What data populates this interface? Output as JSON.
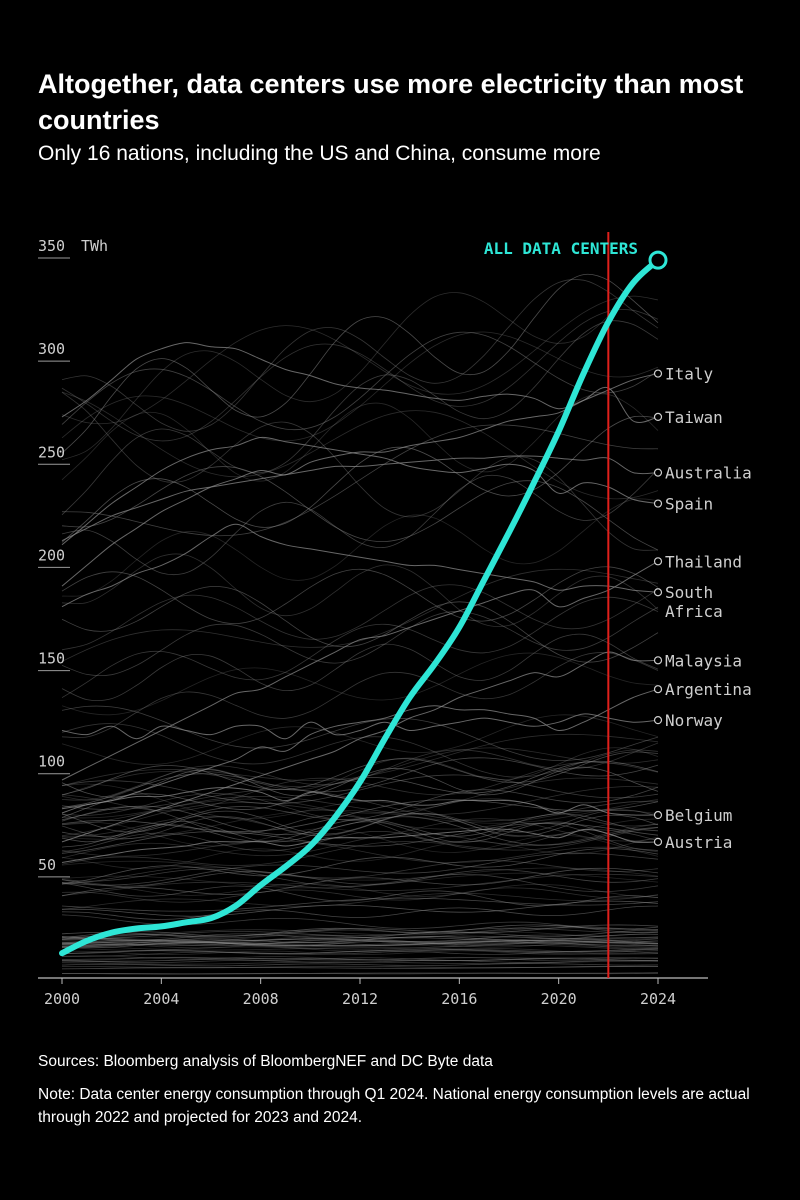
{
  "title": "Altogether, data centers use more electricity than most countries",
  "subtitle": "Only 16 nations, including the US and China, consume more",
  "sources": "Sources: Bloomberg analysis of BloombergNEF and DC Byte data",
  "note": "Note: Data center energy consumption through Q1 2024. National energy consumption levels are actual through 2022 and projected for 2023 and 2024.",
  "colors": {
    "background": "#000000",
    "highlight": "#2ee6d6",
    "marker": "#e0201b",
    "country_lines": "#8a8a8a",
    "text": "#ffffff",
    "axis_text": "#cfcfcf"
  },
  "chart_data": {
    "type": "line",
    "ylim": [
      0,
      350
    ],
    "xlim": [
      2000,
      2024
    ],
    "y_ticks": [
      350,
      300,
      250,
      200,
      150,
      100,
      50
    ],
    "y_tick_labels": [
      "350",
      "300",
      "250",
      "200",
      "150",
      "100",
      "50"
    ],
    "y_unit": "TWh",
    "x_ticks": [
      2000,
      2004,
      2008,
      2012,
      2016,
      2020,
      2024
    ],
    "x_tick_labels": [
      "2000",
      "2004",
      "2008",
      "2012",
      "2016",
      "2020",
      "2024"
    ],
    "marker_year": 2022,
    "grid": false,
    "highlight_series": {
      "name": "ALL DATA CENTERS",
      "x": [
        2000,
        2001,
        2002,
        2003,
        2004,
        2005,
        2006,
        2007,
        2008,
        2009,
        2010,
        2011,
        2012,
        2013,
        2014,
        2015,
        2016,
        2017,
        2018,
        2019,
        2020,
        2021,
        2022,
        2023,
        2024
      ],
      "values": [
        12,
        18,
        22,
        24,
        25,
        27,
        29,
        35,
        45,
        54,
        64,
        78,
        95,
        116,
        136,
        152,
        170,
        193,
        216,
        240,
        265,
        293,
        318,
        337,
        348
      ]
    },
    "labeled_countries": [
      {
        "name": "Italy",
        "values": [
          272,
          280,
          290,
          300,
          305,
          308,
          306,
          305,
          300,
          295,
          292,
          288,
          286,
          285,
          283,
          281,
          280,
          282,
          283,
          281,
          276,
          280,
          285,
          290,
          293
        ]
      },
      {
        "name": "Taiwan",
        "values": [
          190,
          200,
          210,
          218,
          226,
          232,
          238,
          242,
          246,
          244,
          250,
          253,
          255,
          255,
          258,
          260,
          262,
          266,
          270,
          272,
          274,
          280,
          286,
          270,
          272
        ]
      },
      {
        "name": "Australia",
        "values": [
          212,
          218,
          224,
          228,
          232,
          236,
          238,
          240,
          242,
          244,
          246,
          248,
          248,
          249,
          250,
          251,
          252,
          252,
          253,
          253,
          252,
          251,
          252,
          245,
          245
        ]
      },
      {
        "name": "Spain",
        "values": [
          210,
          220,
          230,
          238,
          246,
          252,
          256,
          258,
          262,
          260,
          258,
          256,
          254,
          252,
          248,
          246,
          245,
          247,
          249,
          246,
          235,
          240,
          238,
          232,
          230
        ]
      },
      {
        "name": "Thailand",
        "values": [
          96,
          102,
          108,
          114,
          120,
          126,
          132,
          138,
          140,
          146,
          152,
          158,
          164,
          166,
          170,
          174,
          178,
          182,
          186,
          188,
          180,
          184,
          188,
          195,
          202
        ]
      },
      {
        "name": "South Africa",
        "values": [
          180,
          186,
          190,
          196,
          200,
          206,
          214,
          220,
          214,
          210,
          208,
          206,
          204,
          202,
          200,
          200,
          198,
          196,
          194,
          192,
          188,
          190,
          190,
          188,
          187
        ]
      },
      {
        "name": "Malaysia",
        "values": [
          66,
          70,
          74,
          78,
          82,
          86,
          90,
          94,
          98,
          102,
          106,
          110,
          116,
          120,
          126,
          130,
          136,
          140,
          144,
          148,
          146,
          152,
          158,
          154,
          154
        ]
      },
      {
        "name": "Argentina",
        "values": [
          80,
          84,
          86,
          90,
          94,
          98,
          102,
          106,
          112,
          110,
          118,
          122,
          124,
          126,
          130,
          132,
          130,
          130,
          128,
          126,
          120,
          124,
          130,
          136,
          140
        ]
      },
      {
        "name": "Norway",
        "values": [
          120,
          118,
          122,
          116,
          122,
          120,
          118,
          122,
          122,
          116,
          124,
          118,
          120,
          124,
          120,
          122,
          124,
          126,
          124,
          122,
          124,
          128,
          126,
          124,
          125
        ]
      },
      {
        "name": "Belgium",
        "values": [
          82,
          84,
          86,
          88,
          88,
          90,
          92,
          92,
          90,
          86,
          90,
          88,
          86,
          86,
          84,
          84,
          86,
          86,
          86,
          84,
          80,
          84,
          80,
          79,
          79
        ]
      },
      {
        "name": "Austria",
        "values": [
          56,
          58,
          60,
          62,
          63,
          64,
          66,
          66,
          66,
          64,
          66,
          68,
          68,
          68,
          69,
          70,
          71,
          72,
          72,
          70,
          68,
          72,
          70,
          66,
          66
        ]
      }
    ]
  }
}
